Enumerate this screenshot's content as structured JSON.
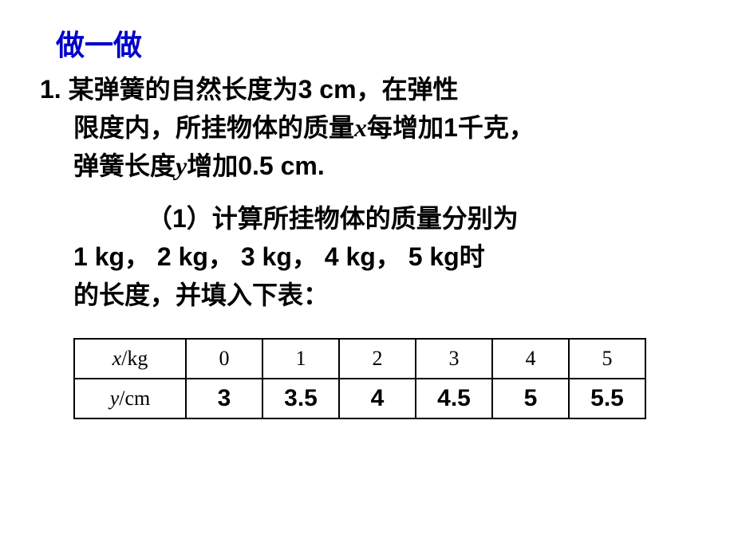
{
  "title": "做一做",
  "problem": {
    "line1_prefix": "1.   某弹簧的自然长度为3 cm，在弹性",
    "line2_a": "限度内，所挂物体的质量",
    "var_x": "x",
    "line2_b": "每增加1千克，",
    "line3_a": "弹簧长度",
    "var_y": "y",
    "line3_b": "增加0.5 cm."
  },
  "subq": {
    "line1": "（1）计算所挂物体的质量分别为",
    "line2": "1 kg， 2 kg， 3 kg， 4 kg， 5 kg时",
    "line3": "的长度，并填入下表："
  },
  "table": {
    "row_x_label_var": "x",
    "row_x_label_unit": "/kg",
    "row_y_label_var": "y",
    "row_y_label_unit": "/cm",
    "x_values": [
      "0",
      "1",
      "2",
      "3",
      "4",
      "5"
    ],
    "y_values": [
      "3",
      "3.5",
      "4",
      "4.5",
      "5",
      "5.5"
    ]
  },
  "colors": {
    "title": "#0000c8",
    "text": "#000000",
    "border": "#000000",
    "background": "#ffffff"
  }
}
